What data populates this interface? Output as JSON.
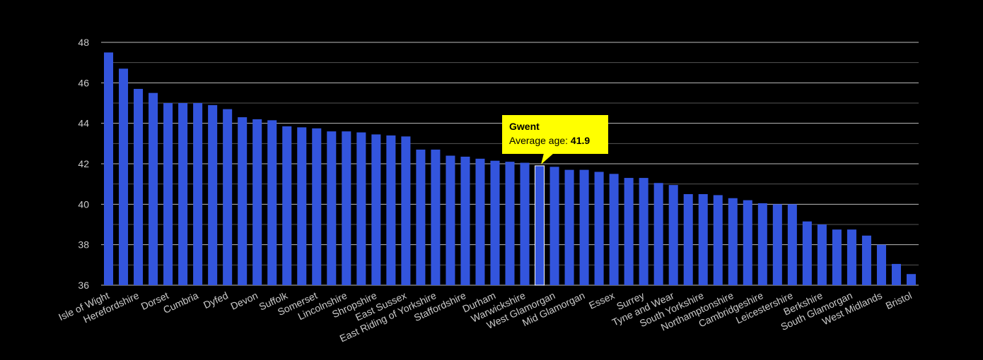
{
  "chart_data": {
    "type": "bar",
    "categories": [
      "Isle of Wight",
      "",
      "Herefordshire",
      "",
      "Dorset",
      "",
      "Cumbria",
      "",
      "Dyfed",
      "",
      "Devon",
      "",
      "Suffolk",
      "",
      "Somerset",
      "",
      "Lincolnshire",
      "",
      "Shropshire",
      "",
      "East Sussex",
      "",
      "East Riding of Yorkshire",
      "",
      "Staffordshire",
      "",
      "Durham",
      "",
      "Warwickshire",
      "",
      "West Glamorgan",
      "",
      "Mid Glamorgan",
      "",
      "Essex",
      "",
      "Surrey",
      "",
      "Tyne and Wear",
      "",
      "South Yorkshire",
      "",
      "Northamptonshire",
      "",
      "Cambridgeshire",
      "",
      "Leicestershire",
      "",
      "Berkshire",
      "",
      "South Glamorgan",
      "",
      "West Midlands",
      "",
      "Bristol"
    ],
    "values": [
      47.5,
      46.7,
      45.7,
      45.5,
      45.0,
      45.0,
      45.0,
      44.9,
      44.7,
      44.3,
      44.2,
      44.15,
      43.85,
      43.8,
      43.75,
      43.6,
      43.6,
      43.55,
      43.45,
      43.4,
      43.35,
      42.7,
      42.7,
      42.4,
      42.35,
      42.25,
      42.15,
      42.1,
      42.05,
      41.9,
      41.85,
      41.7,
      41.7,
      41.6,
      41.5,
      41.3,
      41.3,
      41.05,
      40.95,
      40.5,
      40.5,
      40.45,
      40.3,
      40.2,
      40.05,
      40.0,
      40.0,
      39.15,
      39.0,
      38.75,
      38.75,
      38.45,
      38.0,
      37.05,
      36.55
    ],
    "highlight_index": 29,
    "ylim": [
      36,
      48
    ],
    "yticks": [
      36,
      38,
      40,
      42,
      44,
      46,
      48
    ],
    "grid": true,
    "bar_color": "#3355dd",
    "background": "#000000",
    "tooltip": {
      "title": "Gwent",
      "label": "Average age:",
      "value": "41.9",
      "background": "#ffff00"
    }
  }
}
